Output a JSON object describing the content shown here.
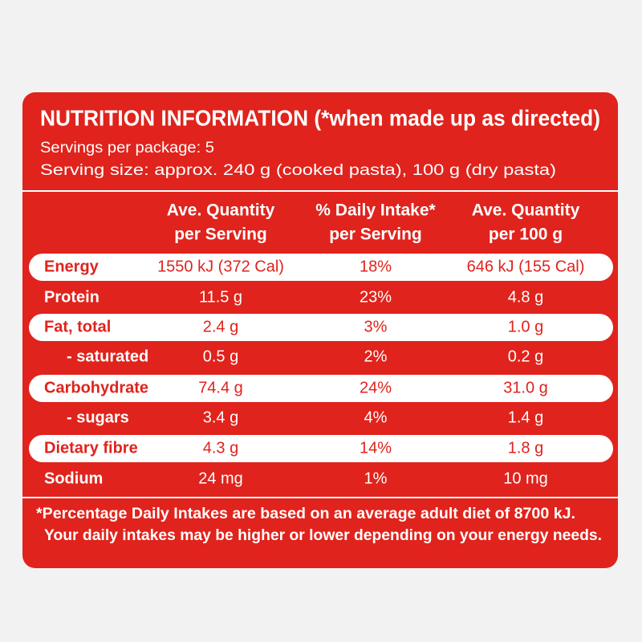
{
  "header": {
    "title": "NUTRITION INFORMATION (*when made up as directed)",
    "servings": "Servings per package: 5",
    "serving_size": "Serving size: approx. 240 g (cooked pasta), 100 g (dry pasta)"
  },
  "table": {
    "columns": [
      [
        "Ave. Quantity",
        "per Serving"
      ],
      [
        "% Daily Intake*",
        "per Serving"
      ],
      [
        "Ave. Quantity",
        "per 100 g"
      ]
    ],
    "rows": [
      [
        "Energy",
        "1550 kJ (372 Cal)",
        "18%",
        "646 kJ (155 Cal)"
      ],
      [
        "Protein",
        "11.5 g",
        "23%",
        "4.8 g"
      ],
      [
        "Fat, total",
        "2.4 g",
        "3%",
        "1.0 g"
      ],
      [
        "- saturated",
        "0.5 g",
        "2%",
        "0.2 g"
      ],
      [
        "Carbohydrate",
        "74.4 g",
        "24%",
        "31.0 g"
      ],
      [
        "- sugars",
        "3.4 g",
        "4%",
        "1.4 g"
      ],
      [
        "Dietary fibre",
        "4.3 g",
        "14%",
        "1.8 g"
      ],
      [
        "Sodium",
        "24 mg",
        "1%",
        "10 mg"
      ]
    ]
  },
  "footnote": [
    "*Percentage Daily Intakes are based on an average adult diet of 8700 kJ.",
    "Your daily intakes may be higher or lower depending on your energy needs."
  ]
}
